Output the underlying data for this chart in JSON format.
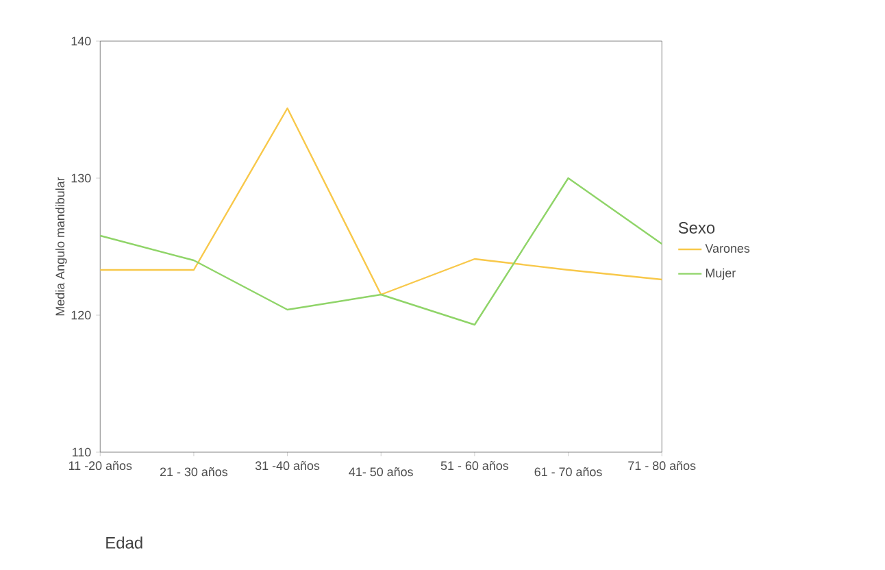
{
  "chart_data": {
    "type": "line",
    "xlabel": "Edad",
    "ylabel": "Media Angulo mandibular",
    "legend_title": "Sexo",
    "categories": [
      "11 -20 años",
      "21 - 30 años",
      "31 -40 años",
      "41- 50 años",
      "51 - 60 años",
      "61 - 70 años",
      "71 - 80 años"
    ],
    "series": [
      {
        "name": "Varones",
        "color": "#f8c84a",
        "values": [
          123.3,
          123.3,
          135.1,
          121.5,
          124.1,
          123.3,
          122.6
        ]
      },
      {
        "name": "Mujer",
        "color": "#8fd468",
        "values": [
          125.8,
          124.0,
          120.4,
          121.5,
          119.3,
          130.0,
          125.2
        ]
      }
    ],
    "ylim": [
      110,
      140
    ],
    "yticks": [
      110,
      120,
      130,
      140
    ],
    "legend": "right",
    "marker": "none",
    "line_style": "solid"
  }
}
